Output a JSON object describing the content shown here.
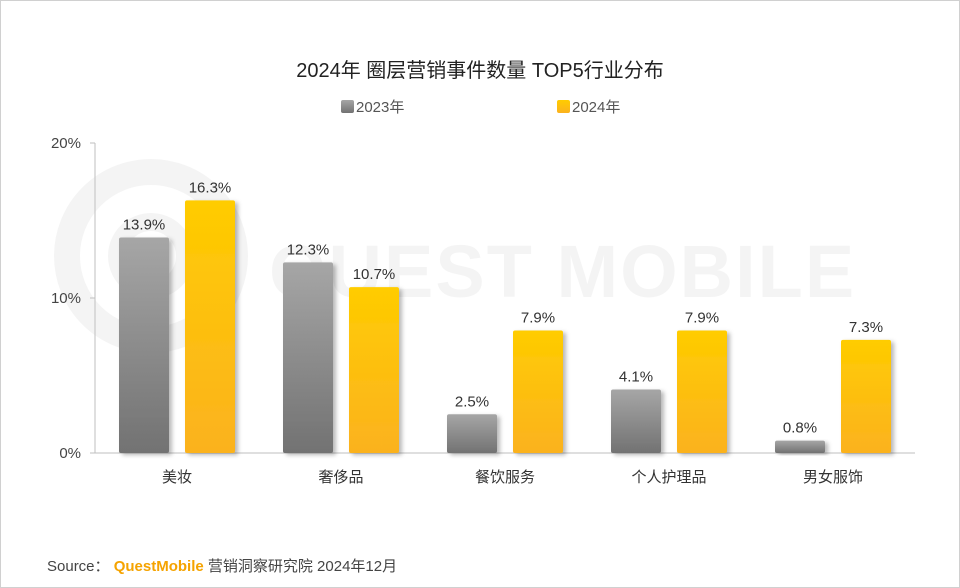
{
  "chart_data": {
    "type": "bar",
    "title": "2024年 圈层营销事件数量 TOP5行业分布",
    "categories": [
      "美妆",
      "奢侈品",
      "餐饮服务",
      "个人护理品",
      "男女服饰"
    ],
    "series": [
      {
        "name": "2023年",
        "values": [
          13.9,
          12.3,
          2.5,
          4.1,
          0.8
        ],
        "labels": [
          "13.9%",
          "12.3%",
          "2.5%",
          "4.1%",
          "0.8%"
        ],
        "color": "#8a8a8a"
      },
      {
        "name": "2024年",
        "values": [
          16.3,
          10.7,
          7.9,
          7.9,
          7.3
        ],
        "labels": [
          "16.3%",
          "10.7%",
          "7.9%",
          "7.9%",
          "7.3%"
        ],
        "color": "#ffc000"
      }
    ],
    "ylim": [
      0,
      20
    ],
    "yticks": [
      0,
      10,
      20
    ],
    "ytick_labels": [
      "0%",
      "10%",
      "20%"
    ],
    "xlabel": "",
    "ylabel": "",
    "legend": "top-center",
    "grid": false
  },
  "watermark": {
    "text": "QUEST MOBILE"
  },
  "source": {
    "prefix": "Source：",
    "brand": "QuestMobile",
    "suffix": "营销洞察研究院 2024年12月"
  },
  "colors": {
    "gray_top": "#a6a6a6",
    "gray_bottom": "#727272",
    "gold_top": "#ffcc00",
    "gold_bottom": "#fbb21f"
  }
}
